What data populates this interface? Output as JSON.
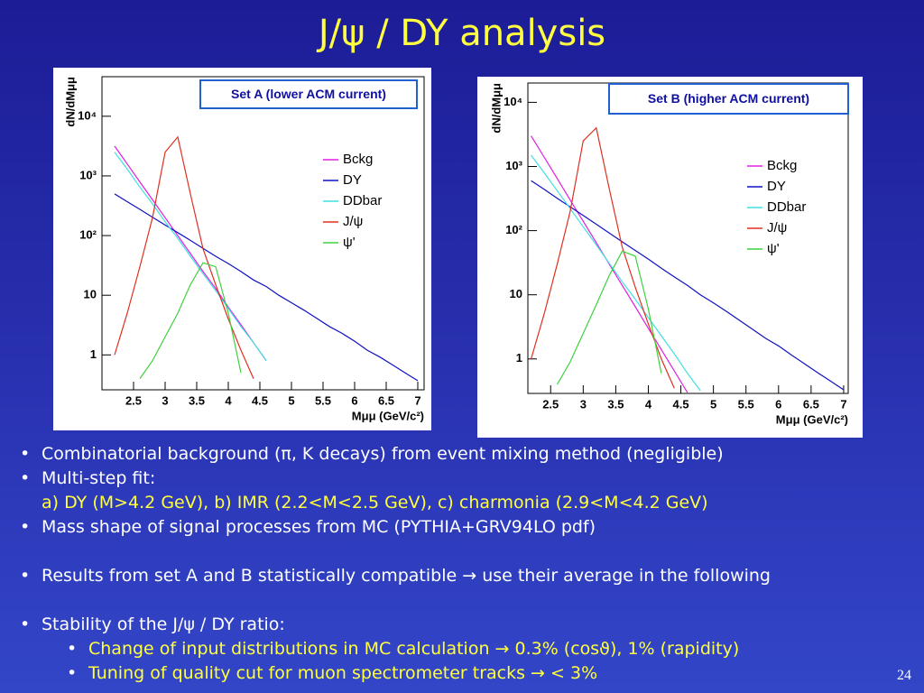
{
  "title": "J/ψ / DY analysis",
  "chart_data": [
    {
      "type": "line",
      "title": "Set A (lower ACM current)",
      "y_label": "dN/dMμμ",
      "x_label": "Mμμ (GeV/c²)",
      "log_y": true,
      "legend": "upper right",
      "xlim": [
        2.0,
        7.1
      ],
      "ylim": [
        0.26,
        46000
      ],
      "xticks": [
        2.5,
        3,
        3.5,
        4,
        4.5,
        5,
        5.5,
        6,
        6.5,
        7
      ],
      "yticks": [
        1,
        10,
        {
          "value": 100,
          "label": "10²"
        },
        {
          "value": 1000,
          "label": "10³"
        },
        {
          "value": 10000,
          "label": "10⁴"
        }
      ],
      "x": [
        2.2,
        2.4,
        2.6,
        2.8,
        3.0,
        3.2,
        3.4,
        3.6,
        3.8,
        4.0,
        4.2,
        4.4,
        4.6,
        4.8,
        5.0,
        5.2,
        5.4,
        5.6,
        5.8,
        6.0,
        6.2,
        6.4,
        6.6,
        6.8,
        7.0
      ],
      "series": [
        {
          "name": "Bckg",
          "color": "#e020e0",
          "values": [
            3162,
            1585,
            794,
            398,
            200,
            100,
            50,
            25,
            13,
            6.3,
            3.2,
            1.6,
            0.8,
            null,
            null,
            null,
            null,
            null,
            null,
            null,
            null,
            null,
            null,
            null,
            null
          ]
        },
        {
          "name": "DY",
          "color": "#1010c0",
          "values": [
            500,
            370,
            275,
            203,
            150,
            112,
            83,
            61,
            45,
            34,
            25,
            18,
            14,
            10,
            7.5,
            5.6,
            4.1,
            3.0,
            2.3,
            1.7,
            1.2,
            0.92,
            0.68,
            0.5,
            0.37
          ]
        },
        {
          "name": "DDbar",
          "color": "#40e0e0",
          "values": [
            2500,
            1300,
            650,
            340,
            170,
            90,
            45,
            23,
            12,
            6,
            3,
            1.6,
            0.8,
            null,
            null,
            null,
            null,
            null,
            null,
            null,
            null,
            null,
            null,
            null,
            null
          ]
        },
        {
          "name": "J/ψ",
          "color": "#e03020",
          "values": [
            1,
            5,
            30,
            200,
            2500,
            4500,
            500,
            60,
            15,
            4,
            1.2,
            0.4,
            null,
            null,
            null,
            null,
            null,
            null,
            null,
            null,
            null,
            null,
            null,
            null,
            null
          ]
        },
        {
          "name": "ψ'",
          "color": "#40d040",
          "values": [
            null,
            null,
            0.4,
            0.8,
            2,
            5,
            15,
            35,
            30,
            5,
            0.5,
            null,
            null,
            null,
            null,
            null,
            null,
            null,
            null,
            null,
            null,
            null,
            null,
            null,
            null
          ]
        }
      ]
    },
    {
      "type": "line",
      "title": "Set B (higher ACM current)",
      "y_label": "dN/dMμμ",
      "x_label": "Mμμ (GeV/c²)",
      "log_y": true,
      "legend": "upper right",
      "xlim": [
        2.15,
        7.07
      ],
      "ylim": [
        0.29,
        20000
      ],
      "xticks": [
        2.5,
        3,
        3.5,
        4,
        4.5,
        5,
        5.5,
        6,
        6.5,
        7
      ],
      "yticks": [
        1,
        10,
        {
          "value": 100,
          "label": "10²"
        },
        {
          "value": 1000,
          "label": "10³"
        },
        {
          "value": 10000,
          "label": "10⁴"
        }
      ],
      "x": [
        2.2,
        2.4,
        2.6,
        2.8,
        3.0,
        3.2,
        3.4,
        3.6,
        3.8,
        4.0,
        4.2,
        4.4,
        4.6,
        4.8,
        5.0,
        5.2,
        5.4,
        5.6,
        5.8,
        6.0,
        6.2,
        6.4,
        6.6,
        6.8,
        7.0
      ],
      "series": [
        {
          "name": "Bckg",
          "color": "#e020e0",
          "values": [
            3000,
            1400,
            650,
            300,
            140,
            65,
            30,
            14,
            6.5,
            3,
            1.4,
            0.65,
            0.3,
            null,
            null,
            null,
            null,
            null,
            null,
            null,
            null,
            null,
            null,
            null,
            null
          ]
        },
        {
          "name": "DY",
          "color": "#1010c0",
          "values": [
            600,
            440,
            320,
            235,
            172,
            126,
            92,
            67,
            49,
            36,
            26,
            19,
            14,
            10,
            7.5,
            5.5,
            4.0,
            2.9,
            2.1,
            1.6,
            1.15,
            0.84,
            0.61,
            0.45,
            0.33
          ]
        },
        {
          "name": "DDbar",
          "color": "#40e0e0",
          "values": [
            1500,
            800,
            420,
            220,
            115,
            60,
            31,
            16,
            8.5,
            4.4,
            2.3,
            1.2,
            0.6,
            0.32,
            null,
            null,
            null,
            null,
            null,
            null,
            null,
            null,
            null,
            null,
            null
          ]
        },
        {
          "name": "J/ψ",
          "color": "#e03020",
          "values": [
            1,
            5,
            30,
            200,
            2500,
            4000,
            450,
            55,
            13,
            3.5,
            1,
            0.35,
            null,
            null,
            null,
            null,
            null,
            null,
            null,
            null,
            null,
            null,
            null,
            null,
            null
          ]
        },
        {
          "name": "ψ'",
          "color": "#40d040",
          "values": [
            null,
            null,
            0.4,
            0.9,
            2.5,
            7,
            20,
            48,
            40,
            6,
            0.6,
            null,
            null,
            null,
            null,
            null,
            null,
            null,
            null,
            null,
            null,
            null,
            null,
            null,
            null
          ]
        }
      ]
    }
  ],
  "bullets": [
    {
      "text": "Combinatorial background (π, K decays) from event mixing method (negligible)",
      "level": 1
    },
    {
      "text": "Multi-step fit:",
      "level": 1
    },
    {
      "text": "a) DY (M>4.2 GeV), b) IMR (2.2<M<2.5 GeV), c) charmonia (2.9<M<4.2 GeV)",
      "level": 0,
      "color": "#ffff40"
    },
    {
      "text": "Mass shape of signal processes from MC (PYTHIA+GRV94LO pdf)",
      "level": 1
    },
    {
      "text": "Results from set A and B statistically compatible → use their average in the following",
      "level": 1,
      "gap": true
    },
    {
      "text": "Stability of the J/ψ / DY ratio:",
      "level": 1,
      "gap": true
    },
    {
      "text": "Change of input distributions in MC calculation → 0.3% (cosϑ), 1% (rapidity)",
      "level": 2,
      "color": "#ffff40"
    },
    {
      "text": "Tuning of quality cut for muon spectrometer tracks → < 3%",
      "level": 2,
      "color": "#ffff40"
    }
  ],
  "page_number": "24"
}
